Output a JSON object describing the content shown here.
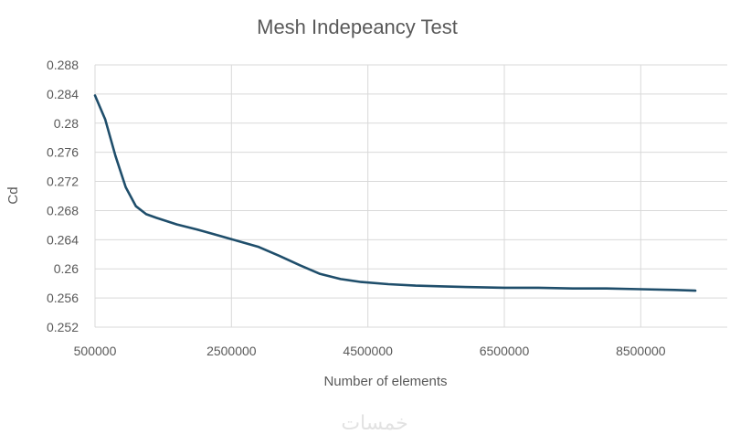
{
  "chart_data": {
    "type": "line",
    "title": "Mesh Indepeancy Test",
    "xlabel": "Number of elements",
    "ylabel": "Cd",
    "xlim": [
      500000,
      9500000
    ],
    "ylim": [
      0.252,
      0.288
    ],
    "xticks": [
      500000,
      2500000,
      4500000,
      6500000,
      8500000
    ],
    "xtick_labels": [
      "500000",
      "2500000",
      "4500000",
      "6500000",
      "8500000"
    ],
    "yticks": [
      0.252,
      0.256,
      0.26,
      0.264,
      0.268,
      0.272,
      0.276,
      0.28,
      0.284,
      0.288
    ],
    "ytick_labels": [
      "0.252",
      "0.256",
      "0.26",
      "0.264",
      "0.268",
      "0.272",
      "0.276",
      "0.28",
      "0.284",
      "0.288"
    ],
    "grid": true,
    "legend": "none",
    "series": [
      {
        "color": "#1f4e6b",
        "x": [
          500000,
          650000,
          800000,
          950000,
          1100000,
          1250000,
          1400000,
          1700000,
          2000000,
          2300000,
          2600000,
          2900000,
          3200000,
          3500000,
          3800000,
          4100000,
          4400000,
          4800000,
          5200000,
          5600000,
          6000000,
          6500000,
          7000000,
          7500000,
          8000000,
          8500000,
          9000000,
          9300000
        ],
        "y": [
          0.2838,
          0.2805,
          0.2755,
          0.2712,
          0.2686,
          0.2675,
          0.267,
          0.2661,
          0.2654,
          0.2646,
          0.2638,
          0.263,
          0.2618,
          0.2605,
          0.2593,
          0.2586,
          0.2582,
          0.2579,
          0.2577,
          0.2576,
          0.2575,
          0.2574,
          0.2574,
          0.2573,
          0.2573,
          0.2572,
          0.2571,
          0.257
        ]
      }
    ]
  },
  "watermark": "خمسات"
}
